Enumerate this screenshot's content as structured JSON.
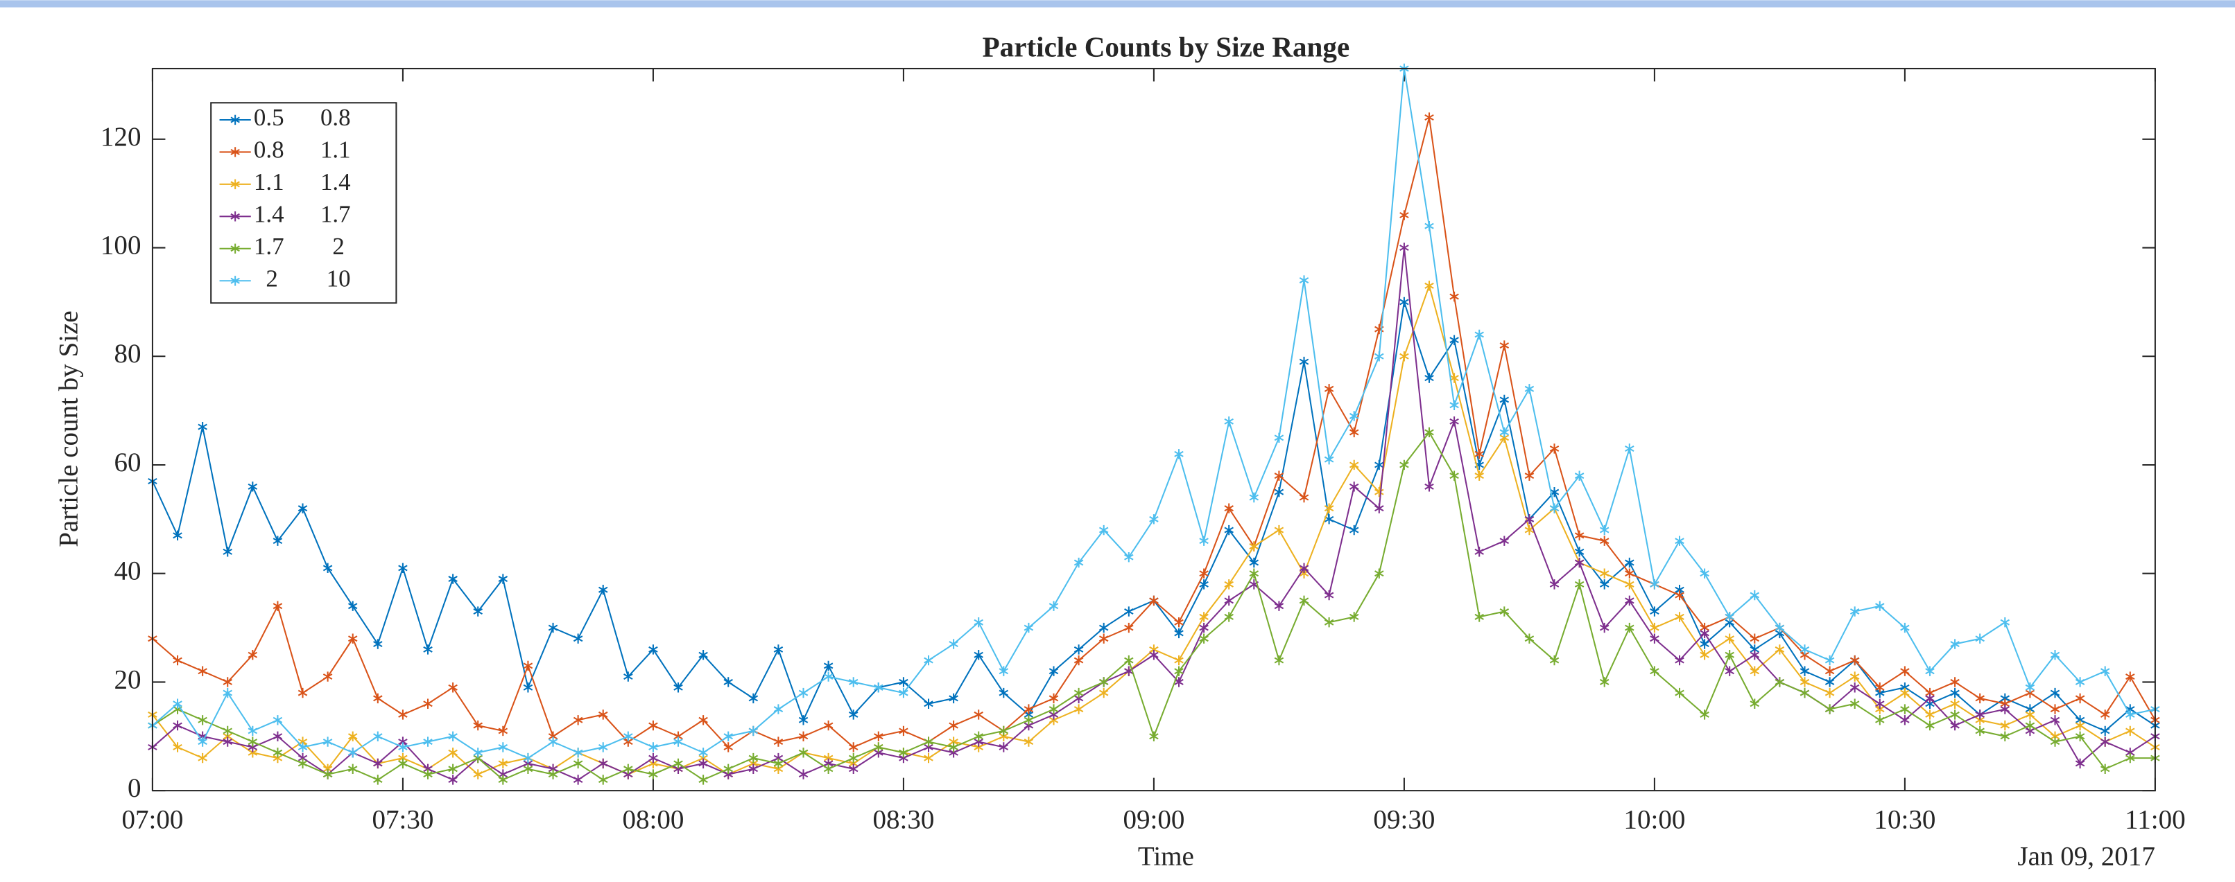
{
  "chart_data": {
    "type": "line",
    "title": "Particle Counts by Size Range",
    "x_label": "Time",
    "y_label": "Particle count by Size",
    "date_label": "Jan 09, 2017",
    "x": [
      "07:00",
      "07:03",
      "07:06",
      "07:09",
      "07:12",
      "07:15",
      "07:18",
      "07:21",
      "07:24",
      "07:27",
      "07:30",
      "07:33",
      "07:36",
      "07:39",
      "07:42",
      "07:45",
      "07:48",
      "07:51",
      "07:54",
      "07:57",
      "08:00",
      "08:03",
      "08:06",
      "08:09",
      "08:12",
      "08:15",
      "08:18",
      "08:21",
      "08:24",
      "08:27",
      "08:30",
      "08:33",
      "08:36",
      "08:39",
      "08:42",
      "08:45",
      "08:48",
      "08:51",
      "08:54",
      "08:57",
      "09:00",
      "09:03",
      "09:06",
      "09:09",
      "09:12",
      "09:15",
      "09:18",
      "09:21",
      "09:24",
      "09:27",
      "09:30",
      "09:33",
      "09:36",
      "09:39",
      "09:42",
      "09:45",
      "09:48",
      "09:51",
      "09:54",
      "09:57",
      "10:00",
      "10:03",
      "10:06",
      "10:09",
      "10:12",
      "10:15",
      "10:18",
      "10:21",
      "10:24",
      "10:27",
      "10:30",
      "10:33",
      "10:36",
      "10:39",
      "10:42",
      "10:45",
      "10:48",
      "10:51",
      "10:54",
      "10:57",
      "11:00"
    ],
    "xlim": [
      "07:00",
      "11:00"
    ],
    "xticks": [
      "07:00",
      "07:30",
      "08:00",
      "08:30",
      "09:00",
      "09:30",
      "10:00",
      "10:30",
      "11:00"
    ],
    "ylim": [
      0,
      133
    ],
    "yticks": [
      0,
      20,
      40,
      60,
      80,
      100,
      120
    ],
    "legend_position": "upper-left",
    "series": [
      {
        "name": "0.5      0.8",
        "color": "#0072bd",
        "values": [
          57,
          47,
          67,
          44,
          56,
          46,
          52,
          41,
          34,
          27,
          41,
          26,
          39,
          33,
          39,
          19,
          30,
          28,
          37,
          21,
          26,
          19,
          25,
          20,
          17,
          26,
          13,
          23,
          14,
          19,
          20,
          16,
          17,
          25,
          18,
          14,
          22,
          26,
          30,
          33,
          35,
          29,
          38,
          48,
          42,
          55,
          79,
          50,
          48,
          60,
          90,
          76,
          83,
          60,
          72,
          50,
          55,
          44,
          38,
          42,
          33,
          37,
          27,
          31,
          26,
          29,
          22,
          20,
          24,
          18,
          19,
          16,
          18,
          14,
          17,
          15,
          18,
          13,
          11,
          15,
          12
        ]
      },
      {
        "name": "0.8      1.1",
        "color": "#d95319",
        "values": [
          28,
          24,
          22,
          20,
          25,
          34,
          18,
          21,
          28,
          17,
          14,
          16,
          19,
          12,
          11,
          23,
          10,
          13,
          14,
          9,
          12,
          10,
          13,
          8,
          11,
          9,
          10,
          12,
          8,
          10,
          11,
          9,
          12,
          14,
          11,
          15,
          17,
          24,
          28,
          30,
          35,
          31,
          40,
          52,
          45,
          58,
          54,
          74,
          66,
          85,
          106,
          124,
          91,
          62,
          82,
          58,
          63,
          47,
          46,
          40,
          38,
          36,
          30,
          32,
          28,
          30,
          25,
          22,
          24,
          19,
          22,
          18,
          20,
          17,
          16,
          18,
          15,
          17,
          14,
          21,
          13
        ]
      },
      {
        "name": "1.1      1.4",
        "color": "#edb120",
        "values": [
          14,
          8,
          6,
          10,
          7,
          6,
          9,
          4,
          10,
          5,
          6,
          4,
          7,
          3,
          5,
          6,
          4,
          7,
          5,
          3,
          5,
          4,
          6,
          3,
          5,
          4,
          7,
          6,
          5,
          8,
          7,
          6,
          9,
          8,
          10,
          9,
          13,
          15,
          18,
          22,
          26,
          24,
          32,
          38,
          45,
          48,
          40,
          52,
          60,
          55,
          80,
          93,
          76,
          58,
          65,
          48,
          52,
          42,
          40,
          38,
          30,
          32,
          25,
          28,
          22,
          26,
          20,
          18,
          21,
          15,
          18,
          14,
          16,
          13,
          12,
          14,
          10,
          12,
          9,
          11,
          8
        ]
      },
      {
        "name": "1.4      1.7",
        "color": "#7e2f8e",
        "values": [
          8,
          12,
          10,
          9,
          8,
          10,
          6,
          3,
          7,
          5,
          9,
          4,
          2,
          6,
          3,
          5,
          4,
          2,
          5,
          3,
          6,
          4,
          5,
          3,
          4,
          6,
          3,
          5,
          4,
          7,
          6,
          8,
          7,
          9,
          8,
          12,
          14,
          17,
          20,
          22,
          25,
          20,
          30,
          35,
          38,
          34,
          41,
          36,
          56,
          52,
          100,
          56,
          68,
          44,
          46,
          50,
          38,
          42,
          30,
          35,
          28,
          24,
          29,
          22,
          25,
          20,
          18,
          15,
          19,
          16,
          13,
          17,
          12,
          14,
          15,
          11,
          13,
          5,
          9,
          7,
          10
        ]
      },
      {
        "name": "1.7        2",
        "color": "#77ac30",
        "values": [
          12,
          15,
          13,
          11,
          9,
          7,
          5,
          3,
          4,
          2,
          5,
          3,
          4,
          6,
          2,
          4,
          3,
          5,
          2,
          4,
          3,
          5,
          2,
          4,
          6,
          5,
          7,
          4,
          6,
          8,
          7,
          9,
          8,
          10,
          11,
          13,
          15,
          18,
          20,
          24,
          10,
          22,
          28,
          32,
          40,
          24,
          35,
          31,
          32,
          40,
          60,
          66,
          58,
          32,
          33,
          28,
          24,
          38,
          20,
          30,
          22,
          18,
          14,
          25,
          16,
          20,
          18,
          15,
          16,
          13,
          15,
          12,
          14,
          11,
          10,
          12,
          9,
          10,
          4,
          6,
          6
        ]
      },
      {
        "name": "  2        10",
        "color": "#4dbeee",
        "values": [
          12,
          16,
          9,
          18,
          11,
          13,
          8,
          9,
          7,
          10,
          8,
          9,
          10,
          7,
          8,
          6,
          9,
          7,
          8,
          10,
          8,
          9,
          7,
          10,
          11,
          15,
          18,
          21,
          20,
          19,
          18,
          24,
          27,
          31,
          22,
          30,
          34,
          42,
          48,
          43,
          50,
          62,
          46,
          68,
          54,
          65,
          94,
          61,
          69,
          80,
          133,
          104,
          71,
          84,
          66,
          74,
          52,
          58,
          48,
          63,
          38,
          46,
          40,
          32,
          36,
          30,
          26,
          24,
          33,
          34,
          30,
          22,
          27,
          28,
          31,
          19,
          25,
          20,
          22,
          14,
          15
        ]
      }
    ]
  }
}
